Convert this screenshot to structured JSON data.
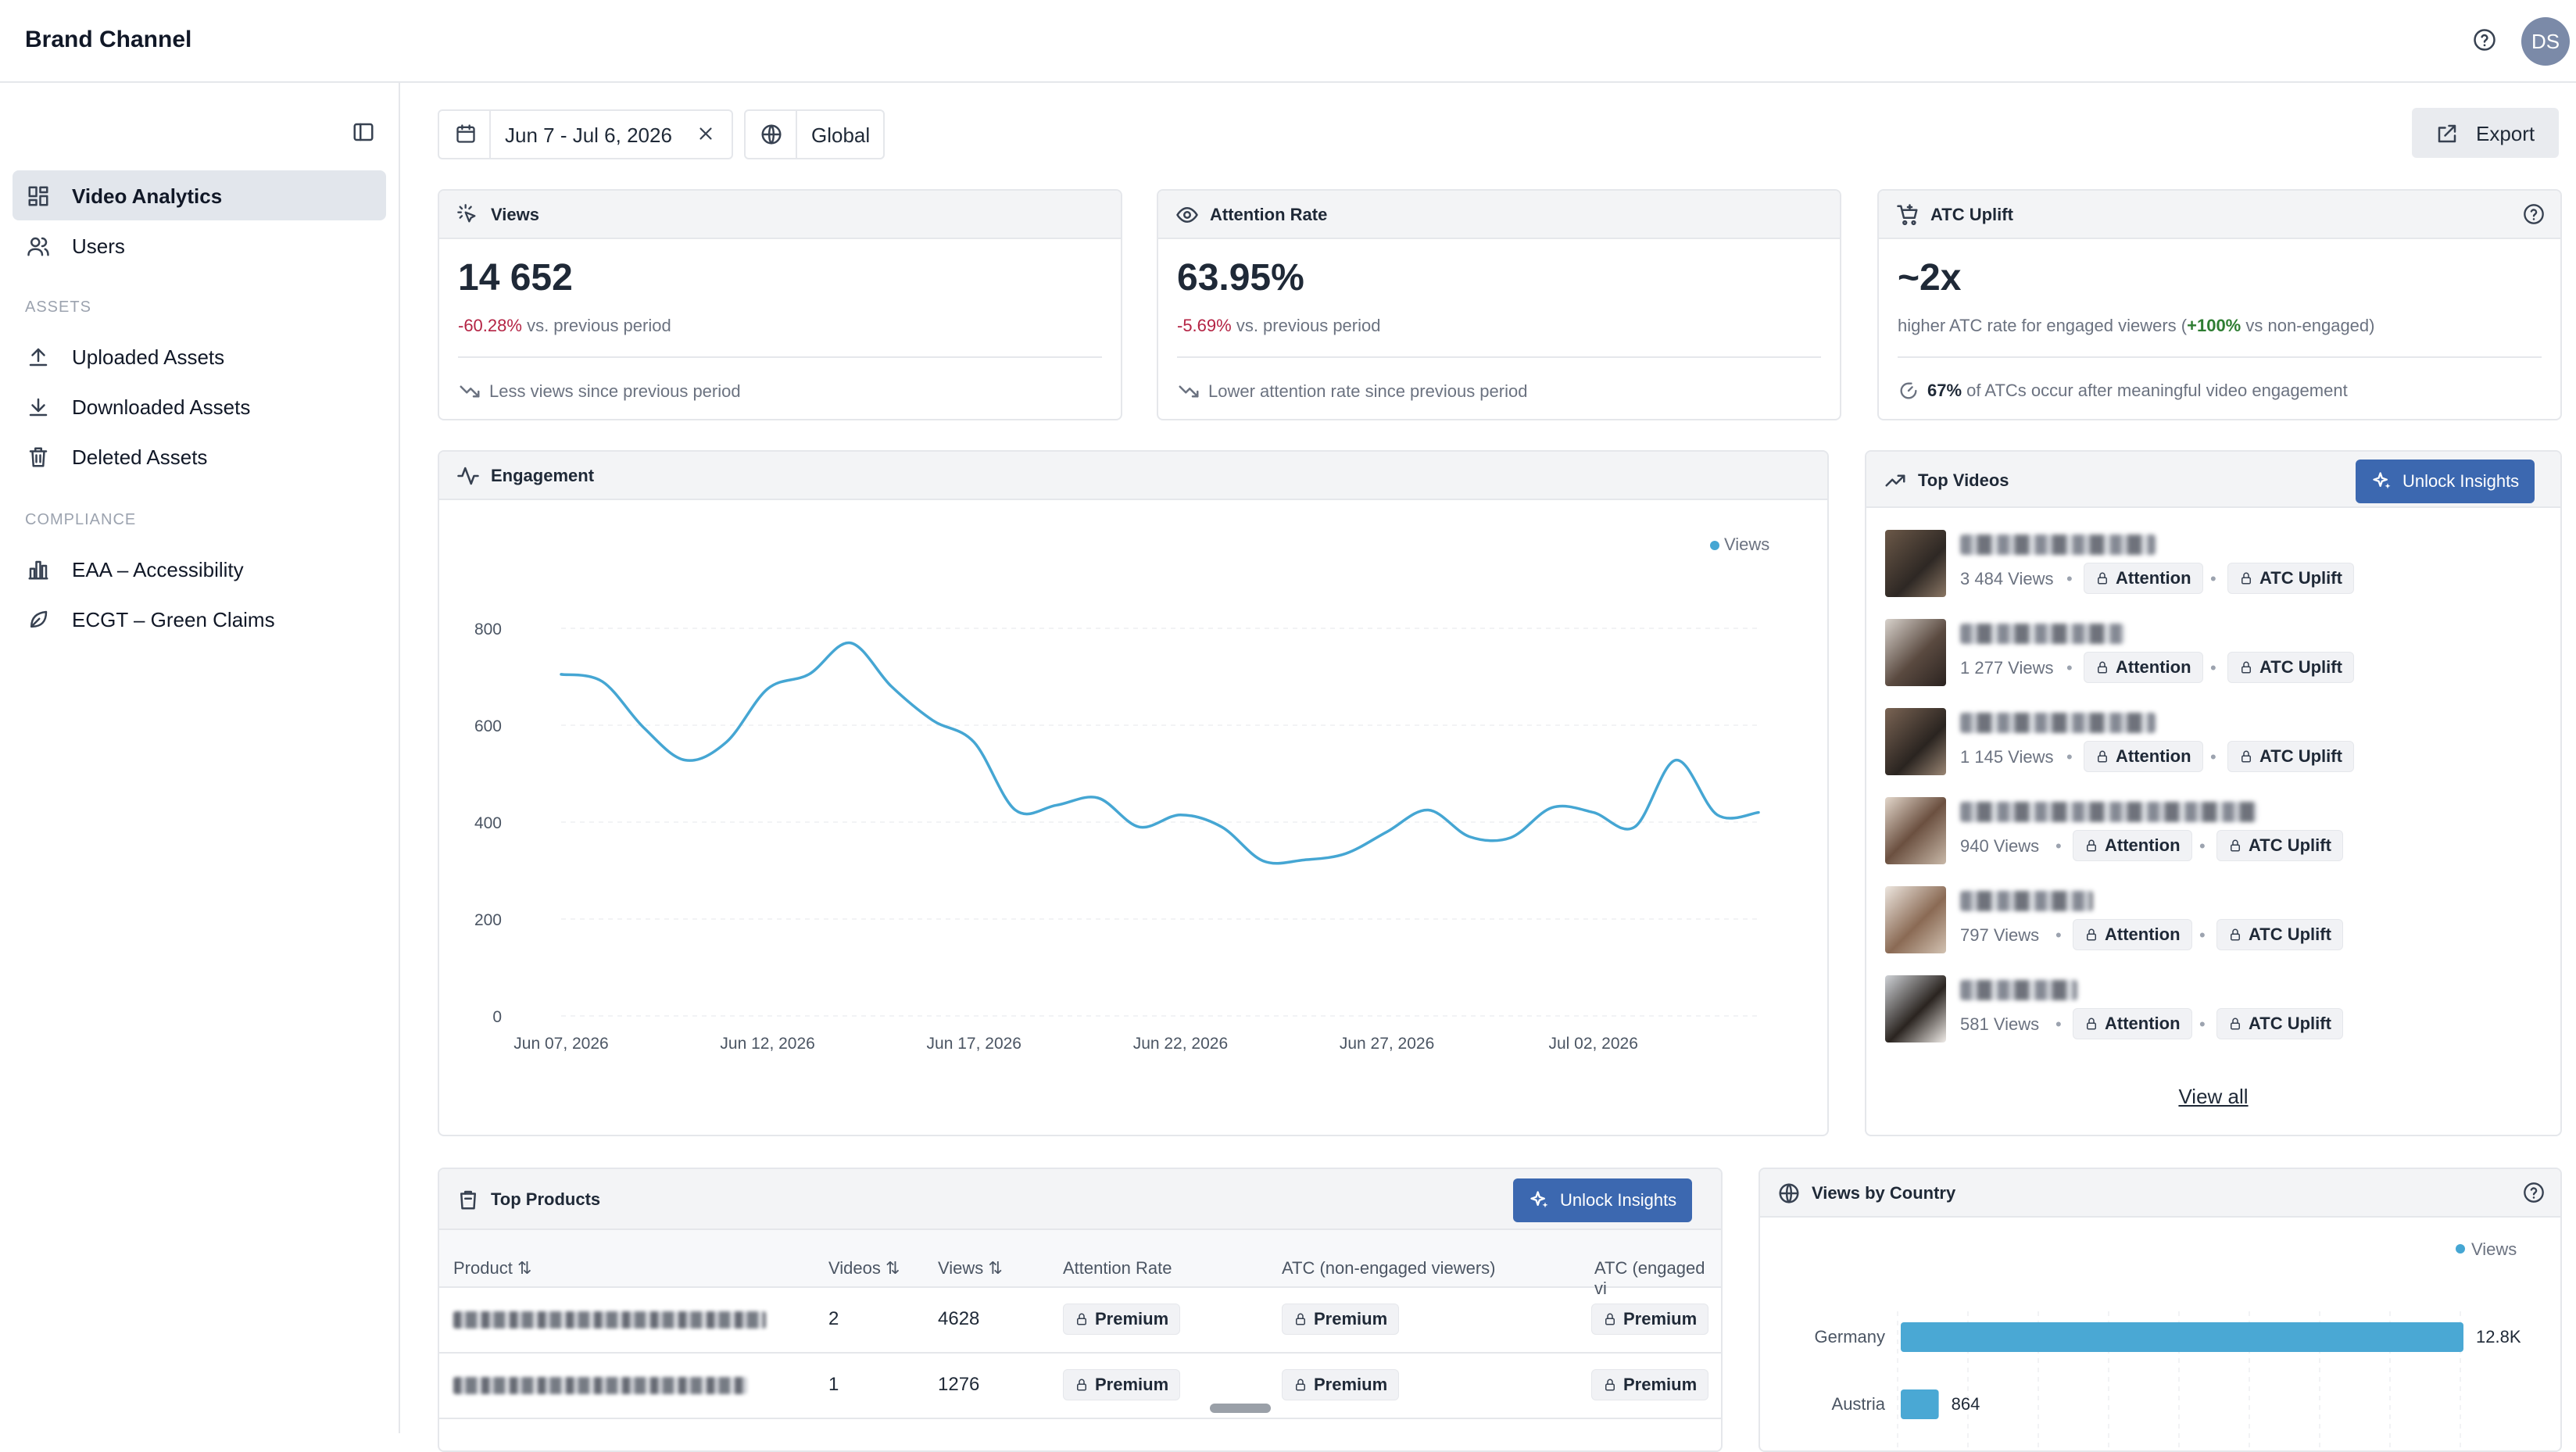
{
  "header": {
    "title": "Brand Channel",
    "avatar_initials": "DS"
  },
  "sidebar": {
    "items_top": [
      {
        "label": "Video Analytics",
        "icon": "dashboard-grid-icon",
        "active": true
      },
      {
        "label": "Users",
        "icon": "users-icon"
      }
    ],
    "assets_section": "ASSETS",
    "assets_items": [
      {
        "label": "Uploaded Assets",
        "icon": "upload-icon"
      },
      {
        "label": "Downloaded Assets",
        "icon": "download-icon"
      },
      {
        "label": "Deleted Assets",
        "icon": "trash-icon"
      }
    ],
    "compliance_section": "COMPLIANCE",
    "compliance_items": [
      {
        "label": "EAA – Accessibility",
        "icon": "bar-chart-icon"
      },
      {
        "label": "ECGT – Green Claims",
        "icon": "leaf-icon"
      }
    ]
  },
  "filters": {
    "date_range": "Jun 7 - Jul 6, 2026",
    "region": "Global",
    "export_label": "Export"
  },
  "kpis": {
    "views": {
      "title": "Views",
      "value": "14 652",
      "delta": "-60.28%",
      "delta_suffix": " vs. previous period",
      "note": "Less views since previous period"
    },
    "attention": {
      "title": "Attention Rate",
      "value": "63.95%",
      "delta": "-5.69%",
      "delta_suffix": " vs. previous period",
      "note": "Lower attention rate since previous period"
    },
    "atc": {
      "title": "ATC Uplift",
      "value": "~2x",
      "sub_prefix": "higher ATC rate for engaged viewers (",
      "sub_highlight": "+100%",
      "sub_suffix": " vs non-engaged)",
      "note_bold": "67%",
      "note_rest": " of ATCs occur after meaningful video engagement"
    }
  },
  "engagement": {
    "title": "Engagement",
    "legend": "Views"
  },
  "chart_data": {
    "type": "line",
    "title": "Engagement",
    "series": [
      {
        "name": "Views",
        "color": "#45a6d3",
        "values": [
          705,
          690,
          595,
          528,
          565,
          675,
          705,
          770,
          680,
          610,
          565,
          425,
          435,
          450,
          390,
          415,
          390,
          320,
          322,
          335,
          380,
          425,
          370,
          368,
          430,
          420,
          390,
          528,
          415,
          420
        ]
      }
    ],
    "x_ticks": [
      "Jun 07, 2026",
      "Jun 12, 2026",
      "Jun 17, 2026",
      "Jun 22, 2026",
      "Jun 27, 2026",
      "Jul 02, 2026"
    ],
    "y_ticks": [
      "0",
      "200",
      "400",
      "600",
      "800"
    ],
    "ylim": [
      0,
      900
    ],
    "grid": true,
    "legend_position": "top-right"
  },
  "top_videos": {
    "title": "Top Videos",
    "unlock_label": "Unlock Insights",
    "view_all": "View all",
    "attention_label": "Attention",
    "atc_label": "ATC Uplift",
    "items": [
      {
        "views": "3 484 Views"
      },
      {
        "views": "1 277 Views"
      },
      {
        "views": "1 145 Views"
      },
      {
        "views": "940 Views"
      },
      {
        "views": "797 Views"
      },
      {
        "views": "581 Views"
      }
    ]
  },
  "top_products": {
    "title": "Top Products",
    "unlock_label": "Unlock Insights",
    "columns": [
      "Product",
      "Videos",
      "Views",
      "Attention Rate",
      "ATC (non-engaged viewers)",
      "ATC (engaged vi"
    ],
    "premium_label": "Premium",
    "rows": [
      {
        "videos": "2",
        "views": "4628"
      },
      {
        "videos": "1",
        "views": "1276"
      }
    ]
  },
  "views_by_country": {
    "title": "Views by Country",
    "legend": "Views",
    "bars": [
      {
        "country": "Germany",
        "label": "12.8K",
        "value": 12800
      },
      {
        "country": "Austria",
        "label": "864",
        "value": 864
      }
    ],
    "max_value": 12800
  }
}
